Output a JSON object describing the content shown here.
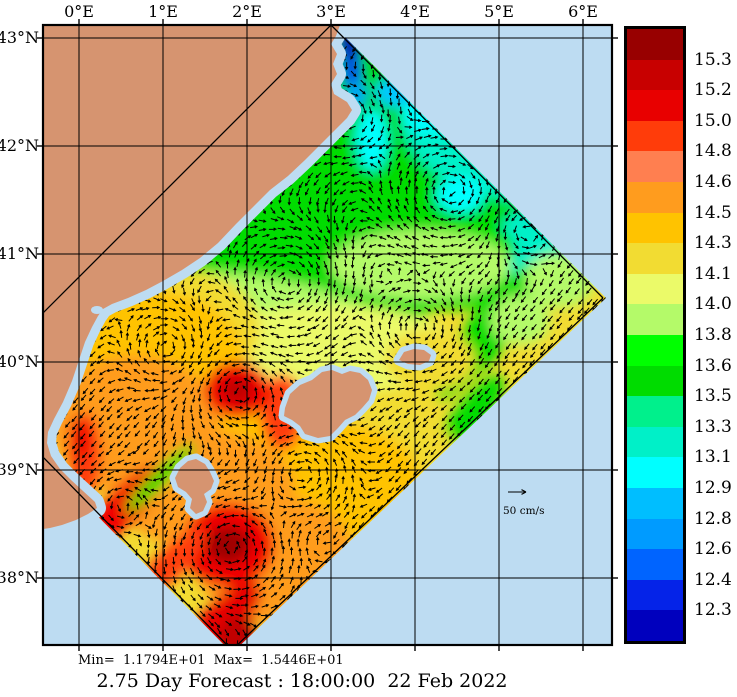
{
  "axes": {
    "top_labels": [
      "0°E",
      "1°E",
      "2°E",
      "3°E",
      "4°E",
      "5°E",
      "6°E"
    ],
    "left_labels": [
      "43°N",
      "42°N",
      "41°N",
      "40°N",
      "39°N",
      "38°N"
    ]
  },
  "colorbar": {
    "colors": [
      "#980000",
      "#C80000",
      "#E80000",
      "#FF3C0A",
      "#FF7F50",
      "#FF9C1E",
      "#FFC300",
      "#F2DC32",
      "#EBFA69",
      "#B4FA69",
      "#00FF00",
      "#00DC00",
      "#00F08C",
      "#00F0C8",
      "#00FFFF",
      "#00BEFF",
      "#009BFF",
      "#0064FF",
      "#0523E8",
      "#0000BE"
    ],
    "labels": [
      "15.3",
      "15.2",
      "15.0",
      "14.8",
      "14.6",
      "14.5",
      "14.3",
      "14.1",
      "14.0",
      "13.8",
      "13.6",
      "13.5",
      "13.3",
      "13.1",
      "12.9",
      "12.8",
      "12.6",
      "12.4",
      "12.3"
    ]
  },
  "legend": {
    "vector_scale_label": "50 cm/s"
  },
  "footer": {
    "stats": "Min=  1.1794E+01  Max=  1.5446E+01",
    "title": "2.75 Day Forecast : 18:00:00  22 Feb 2022"
  },
  "chart_data": {
    "type": "heatmap",
    "title": "2.75 Day Forecast : 18:00:00  22 Feb 2022",
    "description": "Sea surface temperature forecast field with overlaid surface current vectors on a rotated (diamond) model domain, NW Mediterranean / Balearic Sea; land tan, unmodelled sea light blue",
    "x_axis": {
      "tick_labels": [
        "0°E",
        "1°E",
        "2°E",
        "3°E",
        "4°E",
        "5°E",
        "6°E"
      ],
      "approx_range": [
        "-0.4°E",
        "6.4°E"
      ]
    },
    "y_axis": {
      "tick_labels": [
        "43°N",
        "42°N",
        "41°N",
        "40°N",
        "39°N",
        "38°N"
      ],
      "approx_range": [
        "37.4°N",
        "43.1°N"
      ]
    },
    "colorbar": {
      "orientation": "vertical",
      "segment_colors_top_to_bottom": [
        "#980000",
        "#C80000",
        "#E80000",
        "#FF3C0A",
        "#FF7F50",
        "#FF9C1E",
        "#FFC300",
        "#F2DC32",
        "#EBFA69",
        "#B4FA69",
        "#00FF00",
        "#00DC00",
        "#00F08C",
        "#00F0C8",
        "#00FFFF",
        "#00BEFF",
        "#009BFF",
        "#0064FF",
        "#0523E8",
        "#0000BE"
      ],
      "boundary_labels_top_to_bottom": [
        "15.3",
        "15.2",
        "15.0",
        "14.8",
        "14.6",
        "14.5",
        "14.3",
        "14.1",
        "14.0",
        "13.8",
        "13.6",
        "13.5",
        "13.3",
        "13.1",
        "12.9",
        "12.8",
        "12.6",
        "12.4",
        "12.3"
      ]
    },
    "stats": {
      "min": "1.1794E+01",
      "max": "1.5446E+01"
    },
    "vector_scale": "50 cm/s",
    "notable_features": [
      {
        "feature": "cold plume at coast below domain apex",
        "approx_location": "3.1°E 42.8°N",
        "value": "≈12.3–12.6"
      },
      {
        "feature": "cool zone with cyclonic eddies (Gulf of Lion)",
        "approx_location": "3–6°E 41–43°N",
        "value": "13.1–13.8"
      },
      {
        "feature": "mid-basin mild band",
        "approx_location": "0–4°E 39.5–41°N",
        "value": "14.0–14.5"
      },
      {
        "feature": "warm anticyclonic eddy",
        "approx_location": "1.9°E 40.0°N",
        "value": "≈15.0"
      },
      {
        "feature": "large warm eddy near south boundary",
        "approx_location": "1.8°E 38.6°N",
        "value": "≈15.0–15.3"
      },
      {
        "feature": "warm band along SW boundary and Valencia coast",
        "approx_location": "0–2.5°E 38–39.5°N",
        "value": "14.6–15.3"
      }
    ]
  }
}
